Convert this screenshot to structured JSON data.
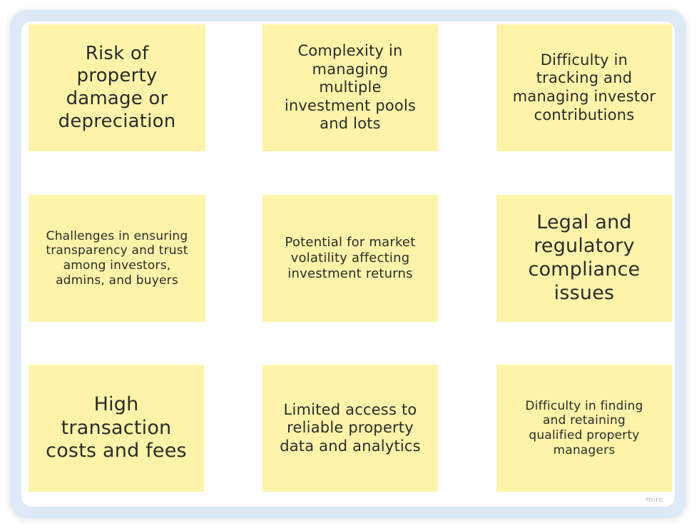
{
  "notes": [
    {
      "text": "Risk of property damage or depreciation"
    },
    {
      "text": "Complexity in managing multiple investment pools and lots"
    },
    {
      "text": "Difficulty in tracking and managing investor contributions"
    },
    {
      "text": "Challenges in ensuring transparency and trust among investors, admins, and buyers"
    },
    {
      "text": "Potential for market volatility affecting investment returns"
    },
    {
      "text": "Legal and regulatory compliance issues"
    },
    {
      "text": "High transaction costs and fees"
    },
    {
      "text": "Limited access to reliable property data and analytics"
    },
    {
      "text": "Difficulty in finding and retaining qualified property managers"
    }
  ],
  "watermark": "miro",
  "colors": {
    "note": "#fdf4a9",
    "frame": "#dde9f6",
    "text": "#2b2b2b"
  }
}
